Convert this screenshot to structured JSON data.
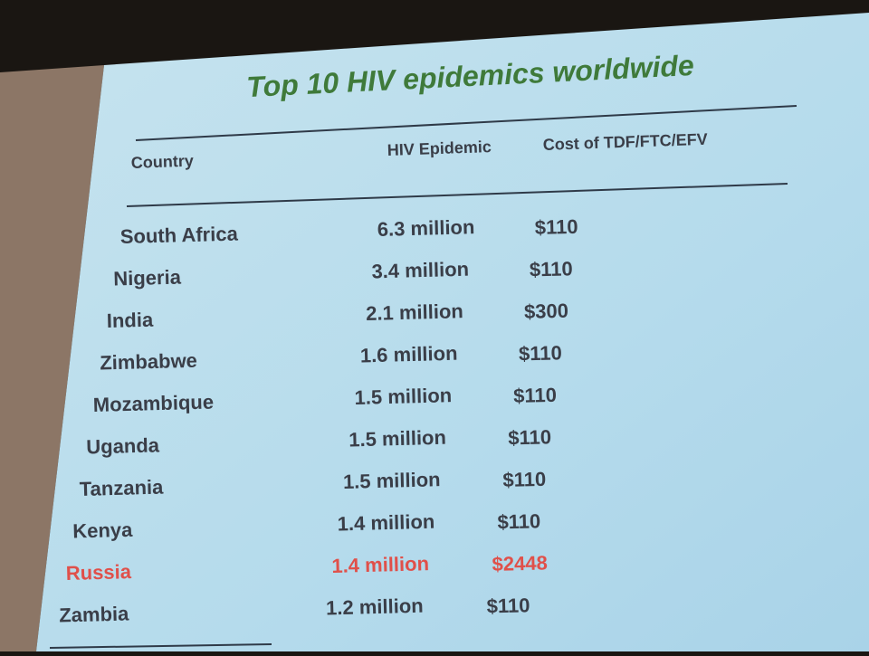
{
  "title": "Top 10 HIV epidemics worldwide",
  "table": {
    "header": [
      "Country",
      "HIV Epidemic",
      "Cost of TDF/FTC/EFV"
    ],
    "rows": [
      [
        "South Africa",
        "6.3 million",
        "$110"
      ],
      [
        "Nigeria",
        "3.4 million",
        "$110"
      ],
      [
        "India",
        "2.1 million",
        "$300"
      ],
      [
        "Zimbabwe",
        "1.6 million",
        "$110"
      ],
      [
        "Mozambique",
        "1.5 million",
        "$110"
      ],
      [
        "Uganda",
        "1.5 million",
        "$110"
      ],
      [
        "Tanzania",
        "1.5 million",
        "$110"
      ],
      [
        "Kenya",
        "1.4 million",
        "$110"
      ],
      [
        "Russia",
        "1.4 million",
        "$2448"
      ],
      [
        "Zambia",
        "1.2 million",
        "$110"
      ]
    ]
  }
}
